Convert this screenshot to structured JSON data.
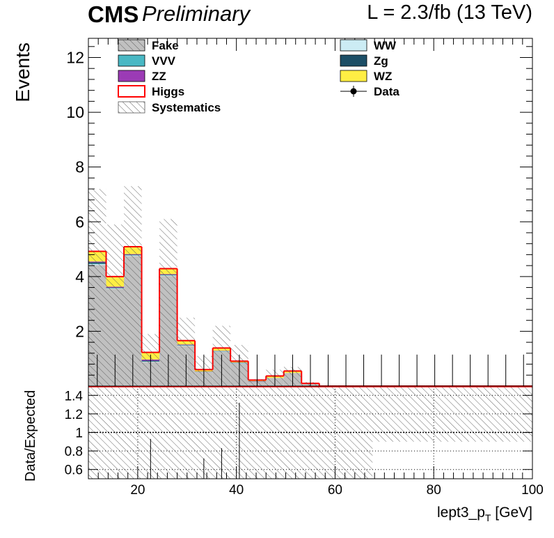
{
  "header": {
    "experiment": "CMS",
    "status": "Preliminary",
    "luminosity": "L = 2.3/fb (13 TeV)"
  },
  "chart_data": [
    {
      "type": "bar",
      "stacked": true,
      "ylabel": "Events",
      "xlim": [
        10,
        100
      ],
      "ylim": [
        0,
        12.7
      ],
      "yticks": [
        2,
        4,
        6,
        8,
        10,
        12
      ],
      "bin_edges": [
        10,
        13.6,
        17.2,
        20.8,
        24.4,
        28,
        31.6,
        35.2,
        38.8,
        42.4,
        46,
        49.6,
        53.2,
        56.8,
        60.4,
        64,
        67.6,
        71.2,
        74.8,
        78.4,
        82,
        85.6,
        89.2,
        92.8,
        96.4,
        100
      ],
      "legend_position": "top",
      "series": [
        {
          "name": "Fake",
          "color": "#c0c0c0",
          "values": [
            4.42,
            3.55,
            4.75,
            0.88,
            4.02,
            1.47,
            0.5,
            1.25,
            0.82,
            0.16,
            0.3,
            0.48,
            0.08,
            0,
            0,
            0,
            0,
            0,
            0,
            0,
            0,
            0,
            0,
            0,
            0
          ]
        },
        {
          "name": "WW",
          "color": "#ccecf4",
          "values": [
            0.03,
            0.02,
            0.02,
            0.01,
            0.02,
            0.01,
            0.01,
            0.01,
            0.01,
            0,
            0,
            0,
            0,
            0,
            0,
            0,
            0,
            0,
            0,
            0,
            0,
            0,
            0,
            0,
            0
          ]
        },
        {
          "name": "VVV",
          "color": "#49b8c4",
          "values": [
            0.02,
            0.01,
            0.01,
            0.01,
            0.01,
            0.01,
            0,
            0.01,
            0.01,
            0,
            0,
            0,
            0,
            0,
            0,
            0,
            0,
            0,
            0,
            0,
            0,
            0,
            0,
            0,
            0
          ]
        },
        {
          "name": "Zg",
          "color": "#1c4e66",
          "values": [
            0.05,
            0.02,
            0.02,
            0.03,
            0.02,
            0.01,
            0.01,
            0.01,
            0.01,
            0.01,
            0,
            0,
            0,
            0,
            0,
            0,
            0,
            0,
            0,
            0,
            0,
            0,
            0,
            0,
            0
          ]
        },
        {
          "name": "ZZ",
          "color": "#9b3bb5",
          "values": [
            0.03,
            0.03,
            0.02,
            0.04,
            0.02,
            0.02,
            0.01,
            0.01,
            0.01,
            0.01,
            0,
            0,
            0,
            0,
            0,
            0,
            0,
            0,
            0,
            0,
            0,
            0,
            0,
            0,
            0
          ]
        },
        {
          "name": "WZ",
          "color": "#ffee44",
          "values": [
            0.35,
            0.35,
            0.25,
            0.25,
            0.18,
            0.13,
            0.07,
            0.09,
            0.04,
            0.04,
            0.07,
            0.07,
            0.02,
            0,
            0,
            0,
            0,
            0,
            0,
            0,
            0,
            0,
            0,
            0,
            0
          ]
        },
        {
          "name": "Higgs",
          "color": "#ff0000",
          "values": [
            0.02,
            0.02,
            0.02,
            0.01,
            0.02,
            0.01,
            0,
            0.01,
            0.01,
            0,
            0,
            0,
            0,
            0,
            0,
            0,
            0,
            0,
            0,
            0,
            0,
            0,
            0,
            0,
            0
          ]
        }
      ],
      "systematics": {
        "name": "Systematics",
        "upper": [
          7.2,
          5.9,
          7.3,
          1.9,
          6.1,
          2.5,
          1.1,
          2.2,
          1.5,
          0.25,
          0.6,
          0.7,
          0.15,
          0,
          0,
          0,
          0,
          0,
          0,
          0,
          0,
          0,
          0,
          0,
          0
        ]
      },
      "data": {
        "name": "Data",
        "values": [
          0,
          0,
          0,
          0,
          0,
          0,
          0,
          0,
          0,
          0,
          0,
          0,
          0,
          0,
          0,
          0,
          0,
          0,
          0,
          0,
          0,
          0,
          0,
          0,
          0
        ],
        "error_up": [
          1.15,
          1.15,
          1.15,
          1.15,
          1.15,
          1.15,
          1.15,
          1.15,
          1.15,
          1.15,
          1.15,
          1.15,
          1.15,
          1.15,
          1.15,
          1.15,
          1.15,
          1.15,
          1.15,
          1.15,
          1.15,
          1.15,
          1.15,
          1.15,
          1.15
        ]
      },
      "legend": [
        {
          "label": "Fake",
          "style": "fill-hatch",
          "color": "#c0c0c0"
        },
        {
          "label": "WW",
          "style": "fill",
          "color": "#ccecf4"
        },
        {
          "label": "VVV",
          "style": "fill",
          "color": "#49b8c4"
        },
        {
          "label": "Zg",
          "style": "fill",
          "color": "#1c4e66"
        },
        {
          "label": "ZZ",
          "style": "fill",
          "color": "#9b3bb5"
        },
        {
          "label": "WZ",
          "style": "fill",
          "color": "#ffee44"
        },
        {
          "label": "Higgs",
          "style": "line",
          "color": "#ff0000"
        },
        {
          "label": "Data",
          "style": "marker",
          "color": "#000000"
        },
        {
          "label": "Systematics",
          "style": "hatch",
          "color": "#555555"
        }
      ]
    },
    {
      "type": "scatter",
      "ylabel": "Data/Expected",
      "xlabel_main": "lept3_p",
      "xlabel_sub": "T",
      "xlabel_unit": " [GeV]",
      "xlim": [
        10,
        100
      ],
      "ylim": [
        0.5,
        1.5
      ],
      "xticks": [
        20,
        40,
        60,
        80,
        100
      ],
      "yticks": [
        0.6,
        0.8,
        1,
        1.2,
        1.4
      ],
      "grid": true,
      "ratio_band": [
        [
          0.5,
          1.5
        ],
        [
          0.5,
          1.5
        ],
        [
          0.5,
          1.5
        ],
        [
          0.5,
          1.5
        ],
        [
          0.5,
          1.5
        ],
        [
          0.5,
          1.5
        ],
        [
          0.5,
          1.5
        ],
        [
          0.5,
          1.5
        ],
        [
          0.5,
          1.5
        ],
        [
          0.5,
          1.5
        ],
        [
          0.5,
          1.5
        ],
        [
          0.5,
          1.5
        ],
        [
          0.5,
          1.5
        ],
        [
          0.5,
          1.5
        ],
        [
          0.5,
          1.5
        ],
        [
          0.5,
          1.5
        ],
        [
          0.9,
          1.5
        ],
        [
          0.9,
          1.5
        ],
        [
          0.9,
          1.5
        ],
        [
          0.9,
          1.5
        ],
        [
          0.9,
          1.5
        ],
        [
          0.9,
          1.5
        ],
        [
          0.9,
          1.5
        ],
        [
          0.9,
          1.5
        ],
        [
          0.9,
          1.5
        ]
      ],
      "ratio_errors": [
        {
          "x": 22.6,
          "up": 0.93
        },
        {
          "x": 33.4,
          "up": 0.72
        },
        {
          "x": 37.0,
          "up": 0.83
        },
        {
          "x": 40.6,
          "up": 1.32
        }
      ]
    }
  ]
}
